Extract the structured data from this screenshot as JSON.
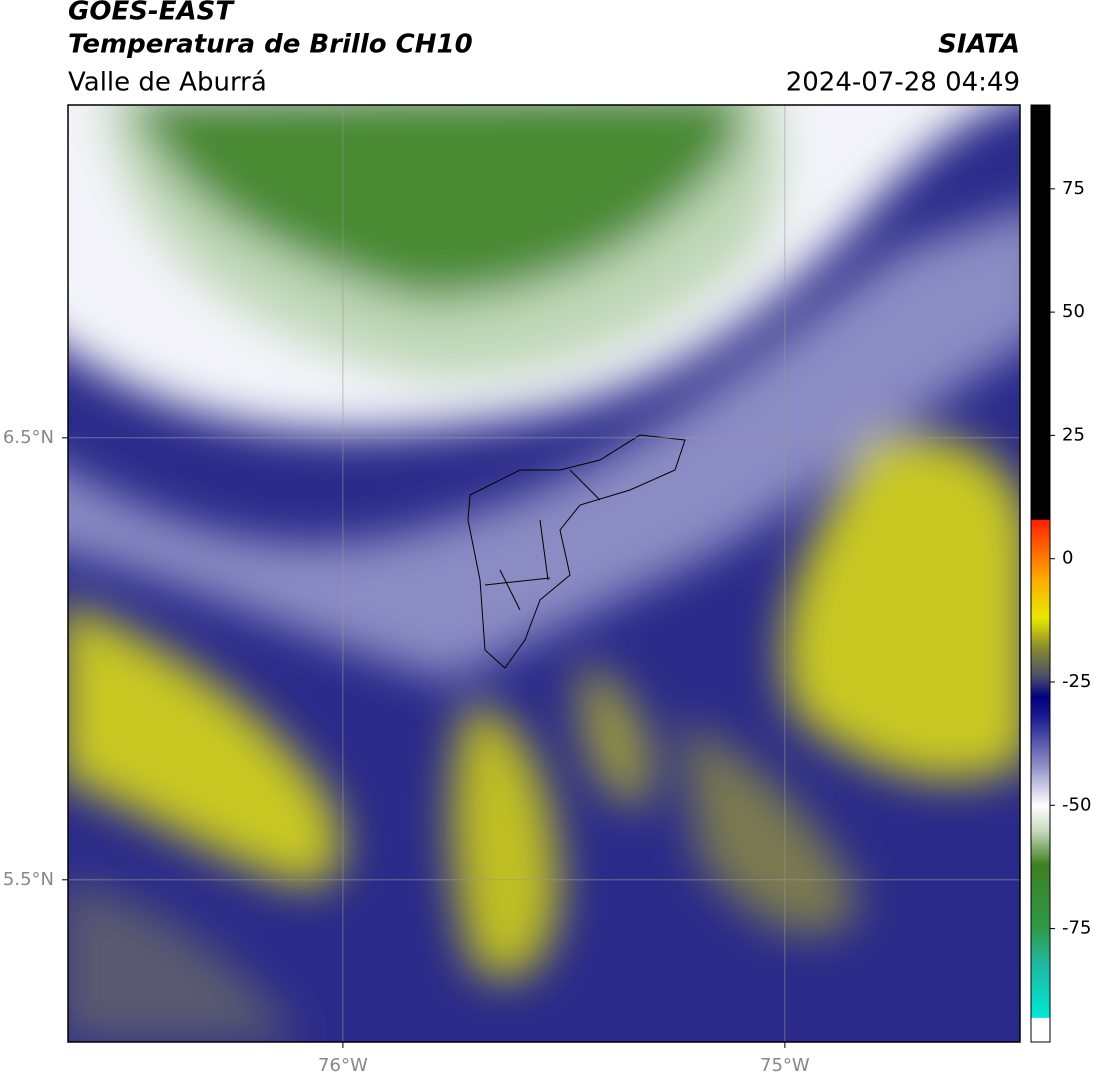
{
  "header": {
    "title": "GOES-EAST",
    "subtitle": "Temperatura de Brillo CH10",
    "region": "Valle de Aburrá",
    "source": "SIATA",
    "datetime": "2024-07-28 04:49"
  },
  "map": {
    "xlim": [
      -76.622,
      -74.468
    ],
    "ylim": [
      5.133,
      7.253
    ],
    "xticks": [
      {
        "value": -76,
        "label": "76°W"
      },
      {
        "value": -75,
        "label": "75°W"
      }
    ],
    "yticks": [
      {
        "value": 5.5,
        "label": "5.5°N"
      },
      {
        "value": 6.5,
        "label": "6.5°N"
      }
    ],
    "grid": true
  },
  "colorbar": {
    "range": [
      -98,
      92
    ],
    "ticks": [
      -75,
      -50,
      -25,
      0,
      25,
      50,
      75
    ],
    "stops": [
      {
        "value": -98,
        "color": "#ffffff"
      },
      {
        "value": -93,
        "color": "#ffffff"
      },
      {
        "value": -93,
        "color": "#00e8d8"
      },
      {
        "value": -82,
        "color": "#20b8a0"
      },
      {
        "value": -75,
        "color": "#2f9a48"
      },
      {
        "value": -62,
        "color": "#3f7f20"
      },
      {
        "value": -55,
        "color": "#c8dcc0"
      },
      {
        "value": -50,
        "color": "#ffffff"
      },
      {
        "value": -42,
        "color": "#9090c8"
      },
      {
        "value": -32,
        "color": "#1a1a90"
      },
      {
        "value": -28,
        "color": "#000080"
      },
      {
        "value": -24,
        "color": "#4a4a6a"
      },
      {
        "value": -18,
        "color": "#8a8a30"
      },
      {
        "value": -12,
        "color": "#e8e800"
      },
      {
        "value": -4,
        "color": "#ffaa00"
      },
      {
        "value": 8,
        "color": "#ff2000"
      },
      {
        "value": 8,
        "color": "#000000"
      },
      {
        "value": 92,
        "color": "#000000"
      }
    ]
  }
}
